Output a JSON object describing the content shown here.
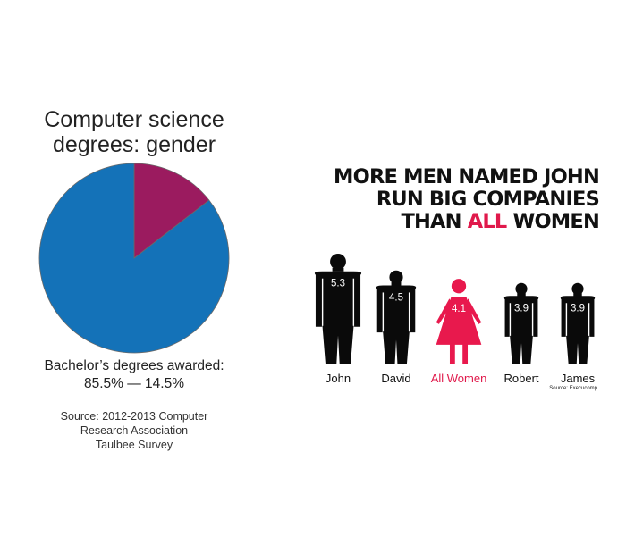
{
  "pie_chart": {
    "title_lines": [
      "Computer science",
      "degrees: gender"
    ],
    "caption_lines": [
      "Bachelor’s degrees awarded:",
      "85.5% — 14.5%"
    ],
    "source_lines": [
      "Source: 2012-2013 Computer",
      "Research Association",
      "Taulbee Survey"
    ]
  },
  "infographic": {
    "headline": {
      "line1": "MORE MEN NAMED JOHN",
      "line2": "RUN BIG COMPANIES",
      "line3_prefix": "THAN ",
      "line3_highlight": "ALL",
      "line3_suffix": " WOMEN"
    },
    "source": "Source: Execucomp"
  },
  "colors": {
    "pie_blue": "#1472b8",
    "pie_magenta": "#9b1b5f",
    "figure_black": "#0a0a0a",
    "figure_red": "#e8194d",
    "highlight": "#e0194b"
  },
  "chart_data": [
    {
      "type": "pie",
      "title": "Computer science degrees: gender",
      "slices": [
        {
          "value": 85.5,
          "color": "#1472b8"
        },
        {
          "value": 14.5,
          "color": "#9b1b5f"
        }
      ],
      "start": "top",
      "smaller_slice_side": "clockwise from top"
    },
    {
      "type": "bar",
      "title": "MORE MEN NAMED JOHN RUN BIG COMPANIES THAN ALL WOMEN",
      "categories": [
        "John",
        "David",
        "All Women",
        "Robert",
        "James"
      ],
      "values": [
        5.3,
        4.5,
        4.1,
        3.9,
        3.9
      ],
      "value_labels": [
        "5.3",
        "4.5",
        "4.1",
        "3.9",
        "3.9"
      ],
      "highlight": "All Women"
    }
  ]
}
